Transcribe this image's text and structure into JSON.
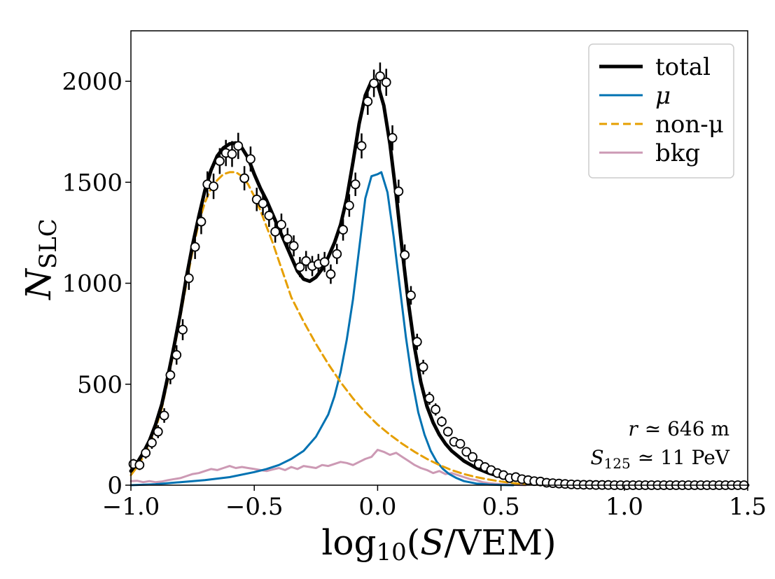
{
  "chart_data": {
    "type": "line",
    "xlabel_main": "log",
    "xlabel_sub": "10",
    "xlabel_rest_open": "(",
    "xlabel_var": "S",
    "xlabel_rest_close": "/VEM)",
    "ylabel_main": "N",
    "ylabel_sub": "SLC",
    "xlim": [
      -1.0,
      1.5
    ],
    "ylim": [
      0,
      2250
    ],
    "xticks": [
      -1.0,
      -0.5,
      0.0,
      0.5,
      1.0,
      1.5
    ],
    "xtick_labels": [
      "−1.0",
      "−0.5",
      "0.0",
      "0.5",
      "1.0",
      "1.5"
    ],
    "yticks": [
      0,
      500,
      1000,
      1500,
      2000
    ],
    "ytick_labels": [
      "0",
      "500",
      "1000",
      "1500",
      "2000"
    ],
    "legend": [
      {
        "label": "total",
        "color": "#000000",
        "style": "solid-thick"
      },
      {
        "label": "μ",
        "color": "#0072b2",
        "style": "solid"
      },
      {
        "label": "non-μ",
        "color": "#e69f00",
        "style": "dashed"
      },
      {
        "label": "bkg",
        "color": "#cc99b4",
        "style": "solid"
      }
    ],
    "annotations": {
      "r_var": "r",
      "r_rest": "≃ 646 m",
      "s_var": "S",
      "s_sub": "125",
      "s_rest": "≃ 11 PeV"
    },
    "series": [
      {
        "name": "total",
        "color": "#000000",
        "x": [
          -1.0,
          -0.975,
          -0.95,
          -0.925,
          -0.9,
          -0.875,
          -0.85,
          -0.825,
          -0.8,
          -0.775,
          -0.75,
          -0.725,
          -0.7,
          -0.675,
          -0.65,
          -0.625,
          -0.6,
          -0.575,
          -0.55,
          -0.525,
          -0.5,
          -0.475,
          -0.45,
          -0.425,
          -0.4,
          -0.375,
          -0.35,
          -0.325,
          -0.3,
          -0.275,
          -0.25,
          -0.225,
          -0.2,
          -0.175,
          -0.15,
          -0.125,
          -0.1,
          -0.075,
          -0.05,
          -0.025,
          0.0,
          0.025,
          0.05,
          0.075,
          0.1,
          0.125,
          0.15,
          0.175,
          0.2,
          0.225,
          0.25,
          0.275,
          0.3,
          0.35,
          0.4,
          0.45,
          0.5,
          0.55,
          0.6,
          0.7,
          0.8,
          0.9,
          1.0,
          1.2,
          1.5
        ],
        "values": [
          70,
          110,
          160,
          220,
          300,
          400,
          540,
          690,
          850,
          1030,
          1190,
          1330,
          1460,
          1560,
          1630,
          1670,
          1690,
          1695,
          1670,
          1620,
          1540,
          1470,
          1410,
          1340,
          1270,
          1200,
          1130,
          1060,
          1020,
          1010,
          1030,
          1070,
          1130,
          1200,
          1290,
          1420,
          1600,
          1790,
          1930,
          2000,
          1985,
          1880,
          1690,
          1440,
          1160,
          900,
          680,
          510,
          390,
          310,
          250,
          205,
          170,
          120,
          85,
          60,
          42,
          30,
          22,
          13,
          8,
          5,
          3,
          1,
          0
        ]
      },
      {
        "name": "μ",
        "color": "#0072b2",
        "x": [
          -1.0,
          -0.9,
          -0.8,
          -0.7,
          -0.6,
          -0.5,
          -0.45,
          -0.4,
          -0.35,
          -0.3,
          -0.25,
          -0.2,
          -0.175,
          -0.15,
          -0.125,
          -0.1,
          -0.075,
          -0.05,
          -0.025,
          0.0,
          0.015,
          0.04,
          0.065,
          0.09,
          0.115,
          0.14,
          0.165,
          0.19,
          0.215,
          0.24,
          0.265,
          0.29,
          0.32,
          0.35,
          0.4,
          0.45,
          0.5,
          0.55
        ],
        "values": [
          0,
          5,
          15,
          25,
          40,
          65,
          80,
          100,
          130,
          170,
          240,
          350,
          440,
          560,
          720,
          920,
          1170,
          1420,
          1530,
          1540,
          1550,
          1450,
          1230,
          980,
          730,
          520,
          360,
          250,
          170,
          115,
          80,
          55,
          35,
          20,
          8,
          3,
          1,
          0
        ]
      },
      {
        "name": "non-μ",
        "color": "#e69f00",
        "x": [
          -1.0,
          -0.975,
          -0.95,
          -0.925,
          -0.9,
          -0.875,
          -0.85,
          -0.825,
          -0.8,
          -0.775,
          -0.75,
          -0.725,
          -0.7,
          -0.675,
          -0.65,
          -0.625,
          -0.6,
          -0.575,
          -0.55,
          -0.525,
          -0.5,
          -0.475,
          -0.45,
          -0.425,
          -0.4,
          -0.375,
          -0.35,
          -0.3,
          -0.25,
          -0.2,
          -0.15,
          -0.1,
          -0.05,
          0.0,
          0.05,
          0.1,
          0.15,
          0.2,
          0.25,
          0.3,
          0.35,
          0.4,
          0.45,
          0.5,
          0.55,
          0.6,
          0.7
        ],
        "values": [
          50,
          90,
          140,
          200,
          280,
          380,
          520,
          670,
          830,
          1000,
          1160,
          1300,
          1400,
          1470,
          1510,
          1540,
          1550,
          1550,
          1530,
          1490,
          1430,
          1360,
          1280,
          1200,
          1110,
          1020,
          930,
          810,
          700,
          600,
          510,
          430,
          360,
          300,
          250,
          205,
          165,
          130,
          100,
          75,
          55,
          40,
          28,
          18,
          10,
          5,
          0
        ]
      },
      {
        "name": "bkg",
        "color": "#cc99b4",
        "x": [
          -1.0,
          -0.975,
          -0.95,
          -0.925,
          -0.9,
          -0.875,
          -0.85,
          -0.825,
          -0.8,
          -0.775,
          -0.75,
          -0.725,
          -0.7,
          -0.675,
          -0.65,
          -0.625,
          -0.6,
          -0.575,
          -0.55,
          -0.525,
          -0.5,
          -0.475,
          -0.45,
          -0.425,
          -0.4,
          -0.375,
          -0.35,
          -0.325,
          -0.3,
          -0.275,
          -0.25,
          -0.225,
          -0.2,
          -0.175,
          -0.15,
          -0.125,
          -0.1,
          -0.075,
          -0.05,
          -0.025,
          0.0,
          0.025,
          0.05,
          0.075,
          0.1,
          0.125,
          0.15,
          0.175,
          0.2,
          0.225,
          0.25,
          0.275,
          0.3,
          0.325,
          0.35,
          0.375,
          0.4,
          0.425,
          0.45,
          0.5,
          0.55,
          0.6
        ],
        "values": [
          20,
          22,
          15,
          20,
          15,
          18,
          25,
          30,
          35,
          45,
          55,
          60,
          70,
          80,
          75,
          85,
          95,
          85,
          90,
          85,
          80,
          75,
          70,
          78,
          85,
          75,
          90,
          80,
          95,
          90,
          85,
          100,
          95,
          105,
          115,
          110,
          100,
          115,
          130,
          140,
          175,
          165,
          150,
          160,
          140,
          120,
          100,
          85,
          75,
          60,
          70,
          55,
          60,
          50,
          40,
          30,
          25,
          15,
          10,
          5,
          2,
          0
        ]
      },
      {
        "name": "data",
        "marker": "circle-open",
        "x": [
          -0.99,
          -0.965,
          -0.94,
          -0.915,
          -0.89,
          -0.865,
          -0.84,
          -0.815,
          -0.79,
          -0.765,
          -0.74,
          -0.715,
          -0.69,
          -0.665,
          -0.64,
          -0.615,
          -0.59,
          -0.565,
          -0.54,
          -0.515,
          -0.49,
          -0.465,
          -0.44,
          -0.415,
          -0.39,
          -0.365,
          -0.34,
          -0.315,
          -0.29,
          -0.265,
          -0.24,
          -0.215,
          -0.19,
          -0.165,
          -0.14,
          -0.115,
          -0.09,
          -0.065,
          -0.04,
          -0.015,
          0.01,
          0.035,
          0.06,
          0.085,
          0.11,
          0.135,
          0.16,
          0.185,
          0.21,
          0.235,
          0.26,
          0.285,
          0.31,
          0.335,
          0.36,
          0.385,
          0.41,
          0.435,
          0.46,
          0.485,
          0.51,
          0.535,
          0.56,
          0.585,
          0.61,
          0.635,
          0.66,
          0.685,
          0.71,
          0.735,
          0.76,
          0.785,
          0.81,
          0.835,
          0.86,
          0.885,
          0.91,
          0.935,
          0.96,
          0.985,
          1.01,
          1.035,
          1.06,
          1.085,
          1.11,
          1.135,
          1.16,
          1.185,
          1.21,
          1.235,
          1.26,
          1.285,
          1.31,
          1.335,
          1.36,
          1.385,
          1.41,
          1.435,
          1.46,
          1.485
        ],
        "values": [
          105,
          100,
          160,
          210,
          265,
          345,
          545,
          645,
          770,
          1025,
          1180,
          1305,
          1490,
          1480,
          1605,
          1645,
          1640,
          1680,
          1520,
          1615,
          1415,
          1395,
          1335,
          1255,
          1290,
          1220,
          1185,
          1080,
          1110,
          1085,
          1095,
          1105,
          1045,
          1145,
          1265,
          1385,
          1490,
          1680,
          1900,
          1990,
          2025,
          1995,
          1720,
          1455,
          1140,
          940,
          710,
          585,
          430,
          375,
          315,
          265,
          215,
          205,
          165,
          140,
          105,
          90,
          75,
          60,
          50,
          35,
          40,
          30,
          25,
          20,
          18,
          12,
          10,
          8,
          6,
          4,
          3,
          2,
          2,
          1,
          1,
          1,
          0,
          0,
          0,
          0,
          0,
          0,
          0,
          0,
          0,
          0,
          0,
          0,
          0,
          0,
          0,
          0,
          0,
          0,
          0,
          0,
          0,
          0
        ],
        "errors": [
          25,
          25,
          28,
          30,
          32,
          36,
          45,
          48,
          52,
          58,
          60,
          62,
          64,
          63,
          64,
          65,
          64,
          65,
          60,
          62,
          58,
          58,
          56,
          54,
          55,
          54,
          52,
          50,
          50,
          50,
          50,
          50,
          48,
          50,
          54,
          56,
          58,
          62,
          66,
          68,
          68,
          67,
          62,
          58,
          52,
          46,
          40,
          36,
          32,
          30,
          26,
          24,
          20,
          20,
          16,
          14,
          12,
          12,
          10,
          10,
          8,
          7,
          7,
          6,
          6,
          5,
          5,
          4,
          4,
          4,
          3,
          3,
          2,
          2,
          2,
          2,
          1,
          1,
          1,
          1,
          1,
          1,
          1,
          1,
          1,
          1,
          1,
          1,
          1,
          1,
          1,
          1,
          1,
          1,
          1,
          1,
          1,
          1,
          1,
          1
        ]
      }
    ]
  }
}
